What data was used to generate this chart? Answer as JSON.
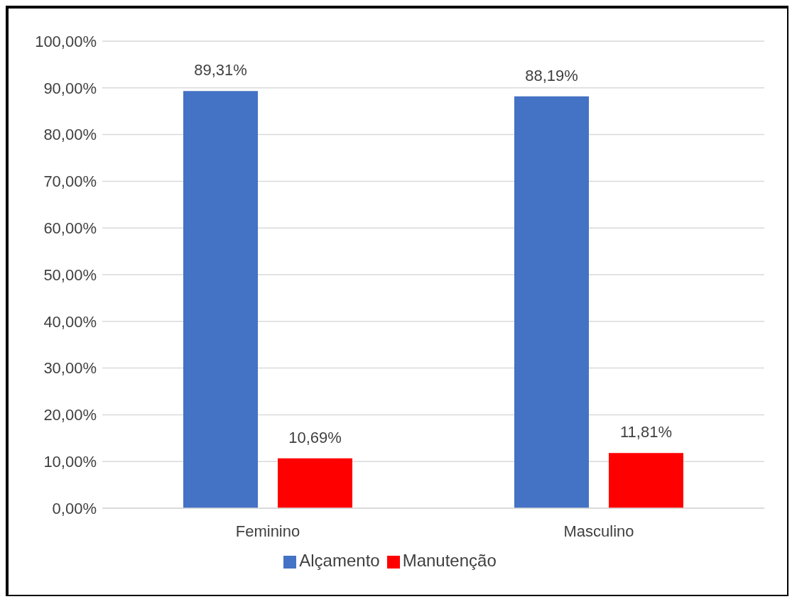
{
  "chart_data": {
    "type": "bar",
    "categories": [
      "Feminino",
      "Masculino"
    ],
    "series": [
      {
        "name": "Alçamento",
        "color": "#4472c4",
        "values": [
          89.31,
          88.19
        ],
        "value_labels": [
          "89,31%",
          "88,19%"
        ]
      },
      {
        "name": "Manutenção",
        "color": "#ff0000",
        "values": [
          10.69,
          11.81
        ],
        "value_labels": [
          "10,69%",
          "11,81%"
        ]
      }
    ],
    "ylim": [
      0,
      100
    ],
    "yticks": [
      {
        "value": 0,
        "label": "0,00%"
      },
      {
        "value": 10,
        "label": "10,00%"
      },
      {
        "value": 20,
        "label": "20,00%"
      },
      {
        "value": 30,
        "label": "30,00%"
      },
      {
        "value": 40,
        "label": "40,00%"
      },
      {
        "value": 50,
        "label": "50,00%"
      },
      {
        "value": 60,
        "label": "60,00%"
      },
      {
        "value": 70,
        "label": "70,00%"
      },
      {
        "value": 80,
        "label": "80,00%"
      },
      {
        "value": 90,
        "label": "90,00%"
      },
      {
        "value": 100,
        "label": "100,00%"
      }
    ],
    "grid": "y",
    "legend": "bottom"
  }
}
